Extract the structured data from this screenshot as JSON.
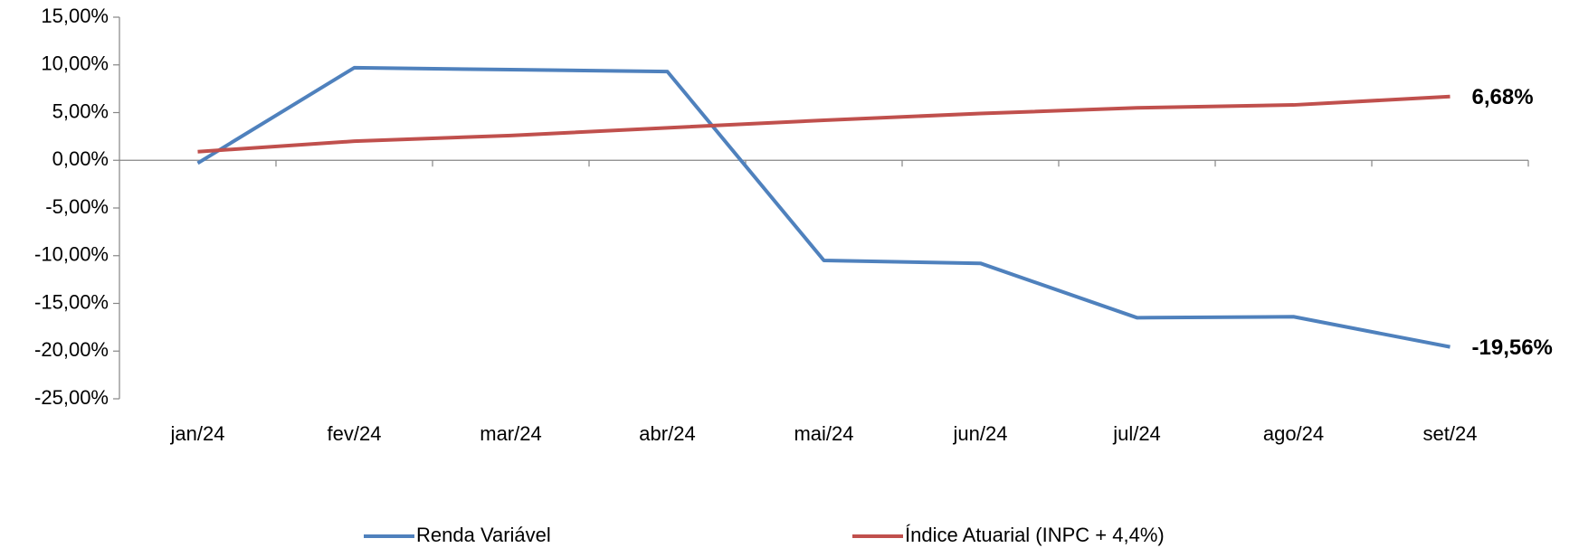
{
  "chart_data": {
    "type": "line",
    "categories": [
      "jan/24",
      "fev/24",
      "mar/24",
      "abr/24",
      "mai/24",
      "jun/24",
      "jul/24",
      "ago/24",
      "set/24"
    ],
    "series": [
      {
        "name": "Renda Variável",
        "color": "#4f81bd",
        "label_color": "#1f4e79",
        "values": [
          -0.3,
          9.7,
          9.5,
          9.3,
          -10.5,
          -10.8,
          -16.5,
          -16.4,
          -19.56
        ],
        "value_labels": [
          null,
          null,
          null,
          null,
          null,
          null,
          null,
          null,
          "-19,56%"
        ]
      },
      {
        "name": "Índice Atuarial (INPC + 4,4%)",
        "color": "#c0504d",
        "label_color": "#ff0000",
        "values": [
          0.9,
          2.0,
          2.6,
          3.4,
          4.2,
          4.9,
          5.5,
          5.8,
          6.68
        ],
        "value_labels": [
          null,
          null,
          null,
          null,
          null,
          null,
          null,
          null,
          "6,68%"
        ]
      }
    ],
    "ylim": [
      -25,
      15
    ],
    "yticks": [
      {
        "value": -25,
        "label": "-25,00%"
      },
      {
        "value": -20,
        "label": "-20,00%"
      },
      {
        "value": -15,
        "label": "-15,00%"
      },
      {
        "value": -10,
        "label": "-10,00%"
      },
      {
        "value": -5,
        "label": "-5,00%"
      },
      {
        "value": 0,
        "label": "0,00%"
      },
      {
        "value": 5,
        "label": "5,00%"
      },
      {
        "value": 10,
        "label": "10,00%"
      },
      {
        "value": 15,
        "label": "15,00%"
      }
    ],
    "grid": false,
    "legend": "bottom"
  }
}
